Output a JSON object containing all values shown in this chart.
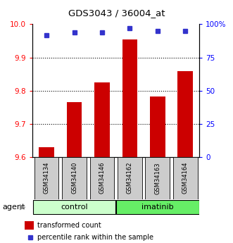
{
  "title": "GDS3043 / 36004_at",
  "samples": [
    "GSM34134",
    "GSM34140",
    "GSM34146",
    "GSM34162",
    "GSM34163",
    "GSM34164"
  ],
  "groups": [
    "control",
    "control",
    "control",
    "imatinib",
    "imatinib",
    "imatinib"
  ],
  "transformed_counts": [
    9.628,
    9.765,
    9.825,
    9.955,
    9.783,
    9.858
  ],
  "percentile_ranks": [
    92,
    94,
    94,
    97,
    95,
    95
  ],
  "ylim_left": [
    9.6,
    10.0
  ],
  "ylim_right": [
    0,
    100
  ],
  "yticks_left": [
    9.6,
    9.7,
    9.8,
    9.9,
    10.0
  ],
  "yticks_right": [
    0,
    25,
    50,
    75,
    100
  ],
  "ytick_labels_right": [
    "0",
    "25",
    "50",
    "75",
    "100%"
  ],
  "bar_color": "#cc0000",
  "dot_color": "#3333cc",
  "control_color": "#ccffcc",
  "imatinib_color": "#66ee66",
  "label_bg_color": "#cccccc",
  "legend_bar_label": "transformed count",
  "legend_dot_label": "percentile rank within the sample",
  "agent_label": "agent",
  "group_label_control": "control",
  "group_label_imatinib": "imatinib",
  "grid_yticks": [
    9.7,
    9.8,
    9.9
  ]
}
